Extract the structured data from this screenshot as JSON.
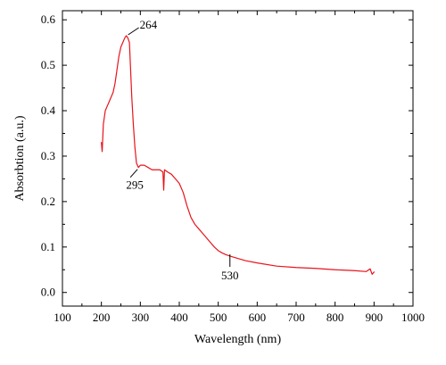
{
  "chart_data": {
    "type": "line",
    "xlabel": "Wavelength (nm)",
    "ylabel": "Absorbtion (a.u.)",
    "xlim": [
      100,
      1000
    ],
    "ylim": [
      -0.03,
      0.62
    ],
    "x_ticks": [
      100,
      200,
      300,
      400,
      500,
      600,
      700,
      800,
      900,
      1000
    ],
    "y_ticks": [
      0.0,
      0.1,
      0.2,
      0.3,
      0.4,
      0.5,
      0.6
    ],
    "x_tick_labels": [
      "100",
      "200",
      "300",
      "400",
      "500",
      "600",
      "700",
      "800",
      "900",
      "1000"
    ],
    "y_tick_labels": [
      "0.0",
      "0.1",
      "0.2",
      "0.3",
      "0.4",
      "0.5",
      "0.6"
    ],
    "grid": false,
    "series": [
      {
        "color": "#e8141b",
        "points": [
          [
            200,
            0.33
          ],
          [
            202,
            0.31
          ],
          [
            205,
            0.37
          ],
          [
            210,
            0.4
          ],
          [
            215,
            0.41
          ],
          [
            220,
            0.42
          ],
          [
            225,
            0.43
          ],
          [
            230,
            0.44
          ],
          [
            235,
            0.46
          ],
          [
            240,
            0.49
          ],
          [
            245,
            0.52
          ],
          [
            250,
            0.54
          ],
          [
            255,
            0.55
          ],
          [
            260,
            0.56
          ],
          [
            264,
            0.565
          ],
          [
            268,
            0.56
          ],
          [
            272,
            0.55
          ],
          [
            275,
            0.49
          ],
          [
            278,
            0.43
          ],
          [
            282,
            0.37
          ],
          [
            286,
            0.32
          ],
          [
            290,
            0.285
          ],
          [
            295,
            0.275
          ],
          [
            300,
            0.28
          ],
          [
            310,
            0.28
          ],
          [
            320,
            0.275
          ],
          [
            330,
            0.27
          ],
          [
            340,
            0.27
          ],
          [
            350,
            0.27
          ],
          [
            358,
            0.265
          ],
          [
            360,
            0.225
          ],
          [
            362,
            0.27
          ],
          [
            370,
            0.265
          ],
          [
            380,
            0.26
          ],
          [
            390,
            0.25
          ],
          [
            400,
            0.24
          ],
          [
            410,
            0.22
          ],
          [
            420,
            0.19
          ],
          [
            430,
            0.165
          ],
          [
            440,
            0.15
          ],
          [
            450,
            0.14
          ],
          [
            460,
            0.13
          ],
          [
            470,
            0.12
          ],
          [
            480,
            0.11
          ],
          [
            490,
            0.1
          ],
          [
            500,
            0.092
          ],
          [
            510,
            0.087
          ],
          [
            520,
            0.083
          ],
          [
            530,
            0.08
          ],
          [
            550,
            0.075
          ],
          [
            570,
            0.07
          ],
          [
            600,
            0.065
          ],
          [
            650,
            0.058
          ],
          [
            700,
            0.055
          ],
          [
            750,
            0.053
          ],
          [
            800,
            0.05
          ],
          [
            850,
            0.048
          ],
          [
            880,
            0.046
          ],
          [
            890,
            0.052
          ],
          [
            895,
            0.04
          ],
          [
            900,
            0.045
          ]
        ]
      }
    ],
    "annotations": [
      {
        "label": "264",
        "x": 264,
        "y": 0.565
      },
      {
        "label": "295",
        "x": 295,
        "y": 0.275
      },
      {
        "label": "530",
        "x": 530,
        "y": 0.08
      }
    ]
  }
}
